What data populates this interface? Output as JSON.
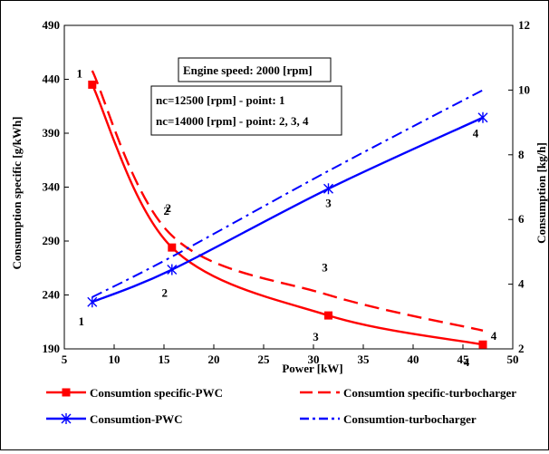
{
  "chart_data": {
    "type": "line",
    "xlabel": "Power [kW]",
    "ylabel_left": "Consumption specific [g/kWh]",
    "ylabel_right": "Consumption [kg/h]",
    "xlim": [
      5,
      50
    ],
    "ylim_left": [
      190,
      490
    ],
    "ylim_right": [
      2,
      12
    ],
    "x_ticks": [
      "5",
      "10",
      "15",
      "20",
      "25",
      "30",
      "35",
      "40",
      "45",
      "50"
    ],
    "y_ticks_left": [
      "190",
      "240",
      "290",
      "340",
      "390",
      "440",
      "490"
    ],
    "y_ticks_right": [
      "2",
      "4",
      "6",
      "8",
      "10",
      "12"
    ],
    "grid": false,
    "legend_position": "bottom",
    "annotations": {
      "engine_speed": "Engine speed: 2000 [rpm]",
      "nc_line1": "nc=12500 [rpm] - point: 1",
      "nc_line2": "nc=14000 [rpm] - point: 2, 3, 4"
    },
    "series": [
      {
        "name": "Consumtion specific-PWC",
        "axis": "left",
        "color": "#ff0000",
        "style": "solid",
        "marker": "square",
        "x": [
          7.8,
          15.8,
          31.5,
          47.0
        ],
        "y": [
          435,
          284,
          221,
          194
        ],
        "point_labels": [
          "1",
          "2",
          "3",
          "4"
        ]
      },
      {
        "name": "Consumtion specific-turbocharger",
        "axis": "left",
        "color": "#ff0000",
        "style": "dashed",
        "marker": "none",
        "x": [
          7.8,
          15.8,
          31.5,
          47.0
        ],
        "y": [
          448,
          295,
          240,
          207
        ],
        "point_labels": [
          "",
          "2",
          "3",
          "4"
        ]
      },
      {
        "name": "Consumtion-PWC",
        "axis": "right",
        "color": "#0000ff",
        "style": "solid",
        "marker": "star",
        "x": [
          7.8,
          15.8,
          31.5,
          47.0
        ],
        "y": [
          3.45,
          4.45,
          6.95,
          9.15
        ],
        "point_labels": [
          "1",
          "2",
          "3",
          "4"
        ]
      },
      {
        "name": "Consumtion-turbocharger",
        "axis": "right",
        "color": "#0000ff",
        "style": "dashdot",
        "marker": "none",
        "x": [
          7.8,
          15.8,
          31.5,
          47.0
        ],
        "y": [
          3.6,
          4.85,
          7.5,
          10.0
        ],
        "point_labels": []
      }
    ]
  }
}
